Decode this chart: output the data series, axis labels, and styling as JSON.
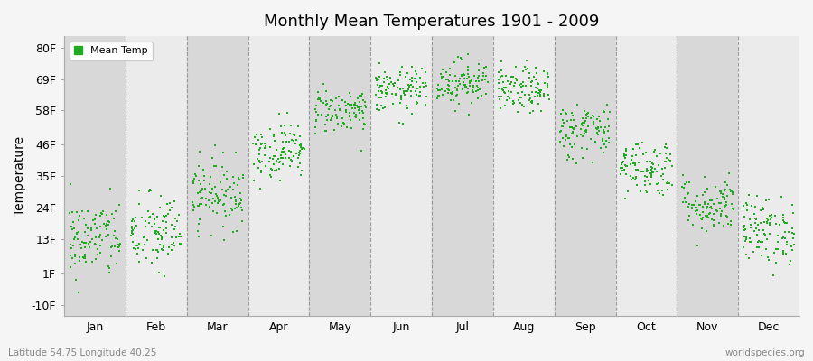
{
  "title": "Monthly Mean Temperatures 1901 - 2009",
  "ylabel": "Temperature",
  "xlabel_bottom_left": "Latitude 54.75 Longitude 40.25",
  "xlabel_bottom_right": "worldspecies.org",
  "legend_label": "Mean Temp",
  "dot_color": "#22aa22",
  "background_color": "#f5f5f5",
  "plot_bg_light": "#ebebeb",
  "plot_bg_dark": "#d8d8d8",
  "ytick_labels": [
    "-10F",
    "1F",
    "13F",
    "24F",
    "35F",
    "46F",
    "58F",
    "69F",
    "80F"
  ],
  "ytick_values": [
    -10,
    1,
    13,
    24,
    35,
    46,
    58,
    69,
    80
  ],
  "ylim": [
    -14,
    84
  ],
  "months": [
    "Jan",
    "Feb",
    "Mar",
    "Apr",
    "May",
    "Jun",
    "Jul",
    "Aug",
    "Sep",
    "Oct",
    "Nov",
    "Dec"
  ],
  "month_means_F": [
    13,
    15,
    29,
    44,
    58,
    65,
    68,
    65,
    51,
    38,
    25,
    16
  ],
  "month_stds_F": [
    7,
    7,
    6,
    5,
    4,
    4,
    4,
    4,
    5,
    5,
    5,
    6
  ],
  "n_years": 109,
  "seed": 42,
  "dot_size": 4,
  "vline_color": "#888888",
  "vline_lw": 0.8
}
